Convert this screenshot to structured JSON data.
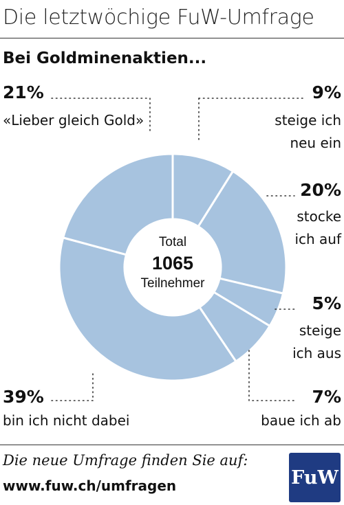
{
  "header": {
    "title": "Die letztwöchige FuW-Umfrage"
  },
  "chart_data": {
    "type": "pie",
    "title": "Bei Goldminenaktien...",
    "center": {
      "top": "Total",
      "value": "1065",
      "bottom": "Teilnehmer"
    },
    "slices": [
      {
        "label_lines": [
          "steige ich",
          "neu ein"
        ],
        "percent_label": "9%",
        "value": 9
      },
      {
        "label_lines": [
          "stocke",
          "ich auf"
        ],
        "percent_label": "20%",
        "value": 20
      },
      {
        "label_lines": [
          "steige",
          "ich aus"
        ],
        "percent_label": "5%",
        "value": 5
      },
      {
        "label_lines": [
          "baue ich ab"
        ],
        "percent_label": "7%",
        "value": 7
      },
      {
        "label_lines": [
          "bin ich nicht dabei"
        ],
        "percent_label": "39%",
        "value": 39
      },
      {
        "label_lines": [
          "«Lieber gleich Gold»"
        ],
        "percent_label": "21%",
        "value": 21
      }
    ],
    "slice_color": "#a7c3df"
  },
  "footer": {
    "line": "Die neue Umfrage finden Sie auf:",
    "url": "www.fuw.ch/umfragen",
    "logo_text": "FuW",
    "logo_color": "#1f3b82"
  }
}
